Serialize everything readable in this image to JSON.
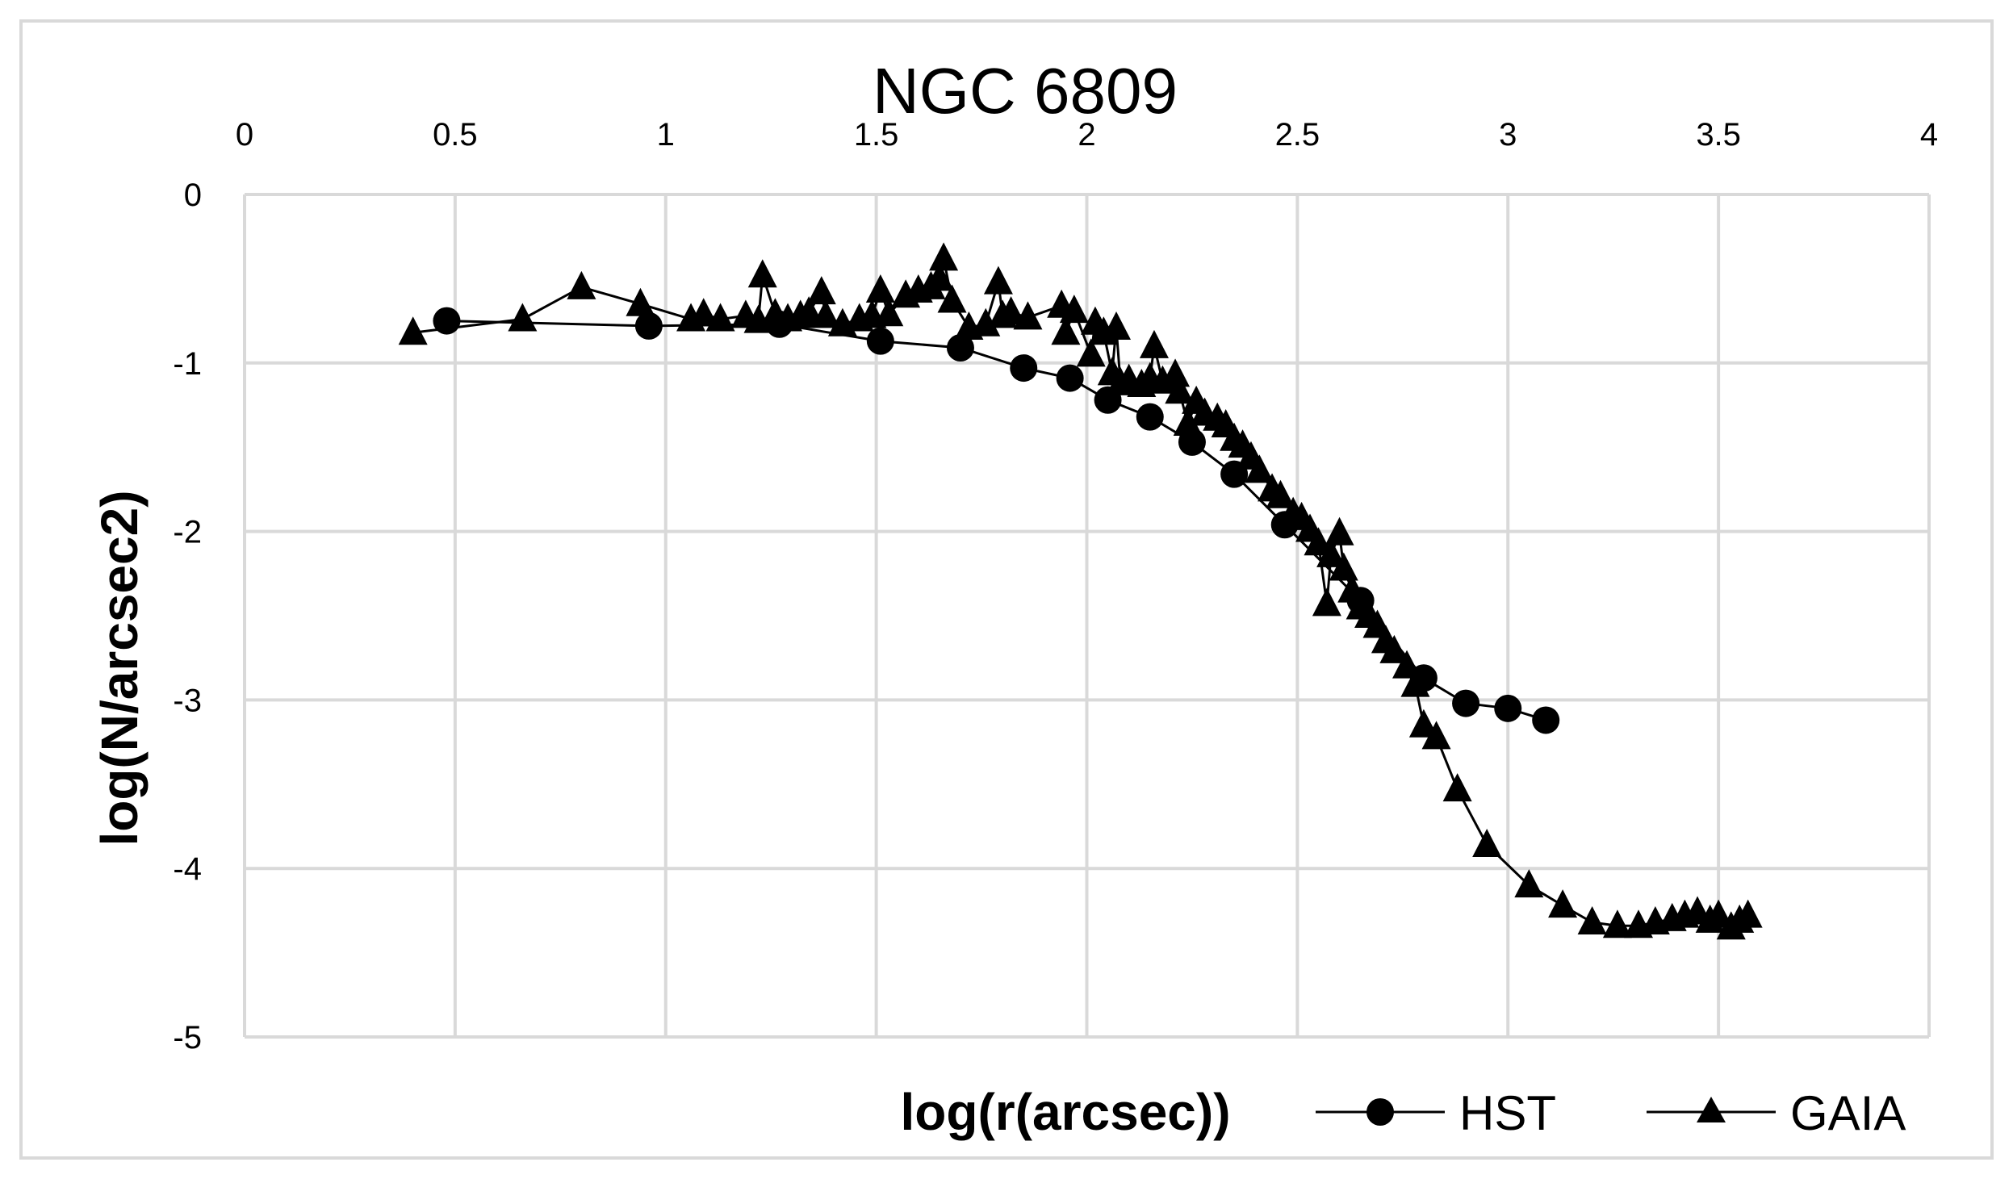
{
  "chart_data": {
    "type": "scatter",
    "title": "NGC 6809",
    "xlabel": "log(r(arcsec))",
    "ylabel": "log(N/arcsec2)",
    "xlim": [
      0,
      4
    ],
    "ylim": [
      -5,
      0
    ],
    "x_ticks": [
      "0",
      "0.5",
      "1",
      "1.5",
      "2",
      "2.5",
      "3",
      "3.5",
      "4"
    ],
    "y_ticks": [
      "0",
      "-1",
      "-2",
      "-3",
      "-4",
      "-5"
    ],
    "x_axis_position": "top",
    "grid": true,
    "legend_position": "bottom-right",
    "series": [
      {
        "name": "HST",
        "marker": "circle",
        "x": [
          0.48,
          0.96,
          1.27,
          1.51,
          1.7,
          1.85,
          1.96,
          2.05,
          2.15,
          2.25,
          2.35,
          2.47,
          2.65,
          2.8,
          2.9,
          3.0,
          3.09
        ],
        "y": [
          -0.75,
          -0.78,
          -0.77,
          -0.87,
          -0.91,
          -1.03,
          -1.09,
          -1.22,
          -1.32,
          -1.47,
          -1.66,
          -1.96,
          -2.41,
          -2.87,
          -3.02,
          -3.05,
          -3.12
        ]
      },
      {
        "name": "GAIA",
        "marker": "triangle",
        "x": [
          0.4,
          0.66,
          0.8,
          0.94,
          1.06,
          1.09,
          1.13,
          1.19,
          1.22,
          1.23,
          1.26,
          1.29,
          1.32,
          1.34,
          1.37,
          1.38,
          1.42,
          1.46,
          1.49,
          1.51,
          1.53,
          1.57,
          1.6,
          1.63,
          1.65,
          1.66,
          1.68,
          1.72,
          1.76,
          1.79,
          1.8,
          1.82,
          1.86,
          1.94,
          1.95,
          1.97,
          2.01,
          2.02,
          2.04,
          2.06,
          2.07,
          2.08,
          2.1,
          2.13,
          2.15,
          2.16,
          2.18,
          2.21,
          2.22,
          2.24,
          2.26,
          2.28,
          2.31,
          2.33,
          2.35,
          2.37,
          2.39,
          2.41,
          2.44,
          2.46,
          2.49,
          2.51,
          2.53,
          2.55,
          2.57,
          2.58,
          2.6,
          2.61,
          2.63,
          2.65,
          2.67,
          2.69,
          2.71,
          2.73,
          2.76,
          2.78,
          2.8,
          2.83,
          2.88,
          2.95,
          3.05,
          3.13,
          3.2,
          3.26,
          3.31,
          3.35,
          3.39,
          3.42,
          3.45,
          3.48,
          3.5,
          3.53,
          3.55,
          3.57
        ],
        "y": [
          -0.82,
          -0.74,
          -0.55,
          -0.65,
          -0.74,
          -0.71,
          -0.74,
          -0.72,
          -0.75,
          -0.48,
          -0.71,
          -0.74,
          -0.72,
          -0.7,
          -0.58,
          -0.72,
          -0.77,
          -0.74,
          -0.72,
          -0.57,
          -0.71,
          -0.6,
          -0.57,
          -0.55,
          -0.5,
          -0.38,
          -0.63,
          -0.79,
          -0.77,
          -0.52,
          -0.72,
          -0.7,
          -0.73,
          -0.66,
          -0.82,
          -0.69,
          -0.95,
          -0.76,
          -0.82,
          -1.06,
          -0.79,
          -1.12,
          -1.1,
          -1.13,
          -1.09,
          -0.9,
          -1.11,
          -1.07,
          -1.17,
          -1.36,
          -1.23,
          -1.3,
          -1.33,
          -1.37,
          -1.45,
          -1.49,
          -1.56,
          -1.64,
          -1.75,
          -1.79,
          -1.89,
          -1.92,
          -1.99,
          -2.07,
          -2.43,
          -2.14,
          -2.01,
          -2.22,
          -2.35,
          -2.45,
          -2.5,
          -2.56,
          -2.65,
          -2.71,
          -2.8,
          -2.91,
          -3.15,
          -3.22,
          -3.53,
          -3.86,
          -4.1,
          -4.22,
          -4.32,
          -4.34,
          -4.34,
          -4.32,
          -4.3,
          -4.28,
          -4.26,
          -4.31,
          -4.28,
          -4.35,
          -4.31,
          -4.28
        ]
      }
    ]
  }
}
